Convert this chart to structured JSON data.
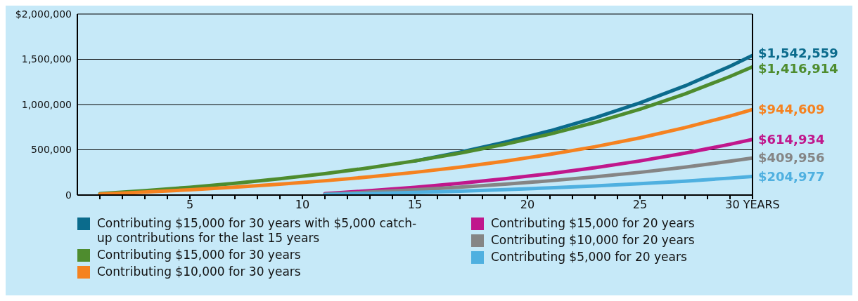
{
  "chart_data": {
    "type": "line",
    "xlim": [
      0,
      30
    ],
    "ylim": [
      0,
      2000000
    ],
    "xticks": [
      {
        "value": 1,
        "label": null
      },
      {
        "value": 2,
        "label": null
      },
      {
        "value": 3,
        "label": null
      },
      {
        "value": 4,
        "label": null
      },
      5,
      {
        "value": 6,
        "label": null
      },
      {
        "value": 7,
        "label": null
      },
      {
        "value": 8,
        "label": null
      },
      {
        "value": 9,
        "label": null
      },
      10,
      {
        "value": 11,
        "label": null
      },
      {
        "value": 12,
        "label": null
      },
      {
        "value": 13,
        "label": null
      },
      {
        "value": 14,
        "label": null
      },
      15,
      {
        "value": 16,
        "label": null
      },
      {
        "value": 17,
        "label": null
      },
      {
        "value": 18,
        "label": null
      },
      {
        "value": 19,
        "label": null
      },
      20,
      {
        "value": 21,
        "label": null
      },
      {
        "value": 22,
        "label": null
      },
      {
        "value": 23,
        "label": null
      },
      {
        "value": 24,
        "label": null
      },
      25,
      {
        "value": 26,
        "label": null
      },
      {
        "value": 27,
        "label": null
      },
      {
        "value": 28,
        "label": null
      },
      {
        "value": 29,
        "label": null
      },
      {
        "value": 30,
        "label": "30 YEARS"
      }
    ],
    "yticks": [
      0,
      {
        "value": 500000,
        "label": "500,000"
      },
      {
        "value": 1000000,
        "label": "1,000,000"
      },
      {
        "value": 1500000,
        "label": "1,500,000"
      },
      {
        "value": 2000000,
        "label": "$2,000,000"
      }
    ],
    "grid": "y",
    "legend": "bottom",
    "marker": "none",
    "line_style": "solid",
    "series": [
      {
        "name": "Contributing $15,000 for 30 years with $5,000 catch-up contributions for the last 15 years",
        "color": "#0b6b8c",
        "x": [
          15,
          17,
          19,
          21,
          23,
          25,
          27,
          29,
          30
        ],
        "values": [
          377000,
          473000,
          583000,
          709000,
          853000,
          1018000,
          1206000,
          1423000,
          1542559
        ],
        "value_labels": [
          null,
          null,
          null,
          null,
          null,
          null,
          null,
          null,
          "$1,542,559"
        ]
      },
      {
        "name": "Contributing $15,000 for 30 years",
        "color": "#4e8c2e",
        "x": [
          1,
          3,
          5,
          7,
          9,
          11,
          13,
          15,
          17,
          19,
          21,
          23,
          25,
          27,
          29,
          30
        ],
        "values": [
          15000,
          48000,
          86000,
          130000,
          180000,
          237000,
          302000,
          377000,
          463000,
          561000,
          673000,
          802000,
          949000,
          1117000,
          1310000,
          1416914
        ],
        "value_labels": [
          null,
          null,
          null,
          null,
          null,
          null,
          null,
          null,
          null,
          null,
          null,
          null,
          null,
          null,
          null,
          "$1,416,914"
        ]
      },
      {
        "name": "Contributing $10,000 for 30 years",
        "color": "#f58220",
        "x": [
          1,
          3,
          5,
          7,
          9,
          11,
          13,
          15,
          17,
          19,
          21,
          23,
          25,
          27,
          29,
          30
        ],
        "values": [
          10000,
          32000,
          58000,
          87000,
          120000,
          158000,
          201000,
          251000,
          308000,
          374000,
          449000,
          534000,
          632000,
          745000,
          873000,
          944609
        ],
        "value_labels": [
          null,
          null,
          null,
          null,
          null,
          null,
          null,
          null,
          null,
          null,
          null,
          null,
          null,
          null,
          null,
          "$944,609"
        ]
      },
      {
        "name": "Contributing $15,000 for 20 years",
        "color": "#c0178c",
        "x": [
          11,
          13,
          15,
          17,
          19,
          21,
          23,
          25,
          27,
          29,
          30
        ],
        "values": [
          15000,
          48000,
          86000,
          130000,
          180000,
          237000,
          302000,
          377000,
          463000,
          561000,
          614934
        ],
        "value_labels": [
          null,
          null,
          null,
          null,
          null,
          null,
          null,
          null,
          null,
          null,
          "$614,934"
        ]
      },
      {
        "name": "Contributing $10,000 for 20 years",
        "color": "#858585",
        "x": [
          11,
          13,
          15,
          17,
          19,
          21,
          23,
          25,
          27,
          29,
          30
        ],
        "values": [
          10000,
          32000,
          58000,
          87000,
          120000,
          158000,
          201000,
          251000,
          308000,
          374000,
          409956
        ],
        "value_labels": [
          null,
          null,
          null,
          null,
          null,
          null,
          null,
          null,
          null,
          null,
          "$409,956"
        ]
      },
      {
        "name": "Contributing $5,000 for 20 years",
        "color": "#4fb0e0",
        "x": [
          11,
          13,
          15,
          17,
          19,
          21,
          23,
          25,
          27,
          29,
          30
        ],
        "values": [
          5000,
          16000,
          29000,
          43000,
          60000,
          79000,
          101000,
          126000,
          154000,
          187000,
          204977
        ],
        "value_labels": [
          null,
          null,
          null,
          null,
          null,
          null,
          null,
          null,
          null,
          null,
          "$204,977"
        ]
      }
    ]
  }
}
